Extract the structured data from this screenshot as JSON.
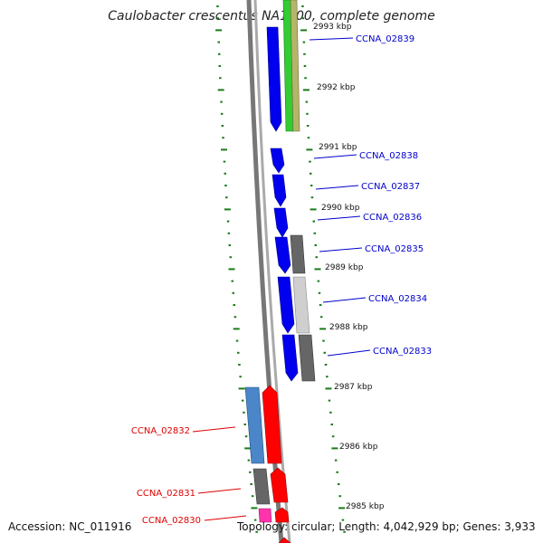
{
  "title": "Caulobacter crescentus NA1000, complete genome",
  "footer": {
    "accession": "Accession: NC_011916",
    "topology": "Topology: circular; Length: 4,042,929 bp; Genes: 3,933"
  },
  "colors": {
    "plus_strand_gene": "#0000ee",
    "minus_strand_gene": "#ff0000",
    "plus_label": "#0000cc",
    "minus_label": "#dd0000",
    "tick": "#1a7a1a"
  },
  "scale_labels": [
    "2993 kbp",
    "2992 kbp",
    "2991 kbp",
    "2990 kbp",
    "2989 kbp",
    "2988 kbp",
    "2987 kbp",
    "2986 kbp",
    "2985 kbp"
  ],
  "genes": [
    {
      "name": "CCNA_02839",
      "strand": "+"
    },
    {
      "name": "CCNA_02838",
      "strand": "+"
    },
    {
      "name": "CCNA_02837",
      "strand": "+"
    },
    {
      "name": "CCNA_02836",
      "strand": "+"
    },
    {
      "name": "CCNA_02835",
      "strand": "+"
    },
    {
      "name": "CCNA_02834",
      "strand": "+"
    },
    {
      "name": "CCNA_02833",
      "strand": "+"
    },
    {
      "name": "CCNA_02832",
      "strand": "-"
    },
    {
      "name": "CCNA_02831",
      "strand": "-"
    },
    {
      "name": "CCNA_02830",
      "strand": "-"
    }
  ]
}
